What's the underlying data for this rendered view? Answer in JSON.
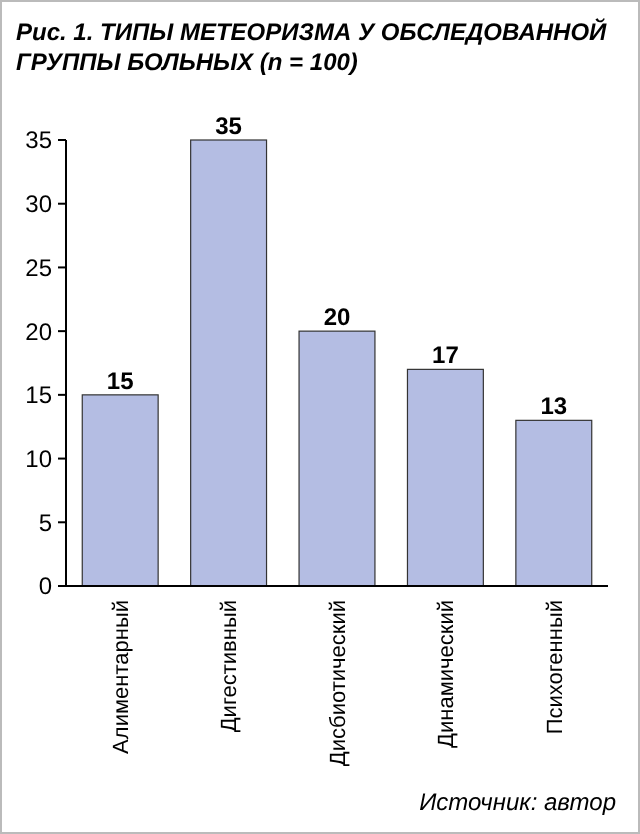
{
  "chart_data": {
    "type": "bar",
    "title": "Рис. 1. ТИПЫ МЕТЕОРИЗМА У ОБСЛЕДОВАННОЙ ГРУППЫ БОЛЬНЫХ (n = 100)",
    "categories": [
      "Алиментарный",
      "Дигестивный",
      "Дисбиотический",
      "Динамический",
      "Психогенный"
    ],
    "values": [
      15,
      35,
      20,
      17,
      13
    ],
    "color": "#b4bde3",
    "ylim": [
      0,
      35
    ],
    "yticks": [
      0,
      5,
      10,
      15,
      20,
      25,
      30,
      35
    ],
    "data_labels": true,
    "annotations": [
      "Источник: автор"
    ]
  }
}
